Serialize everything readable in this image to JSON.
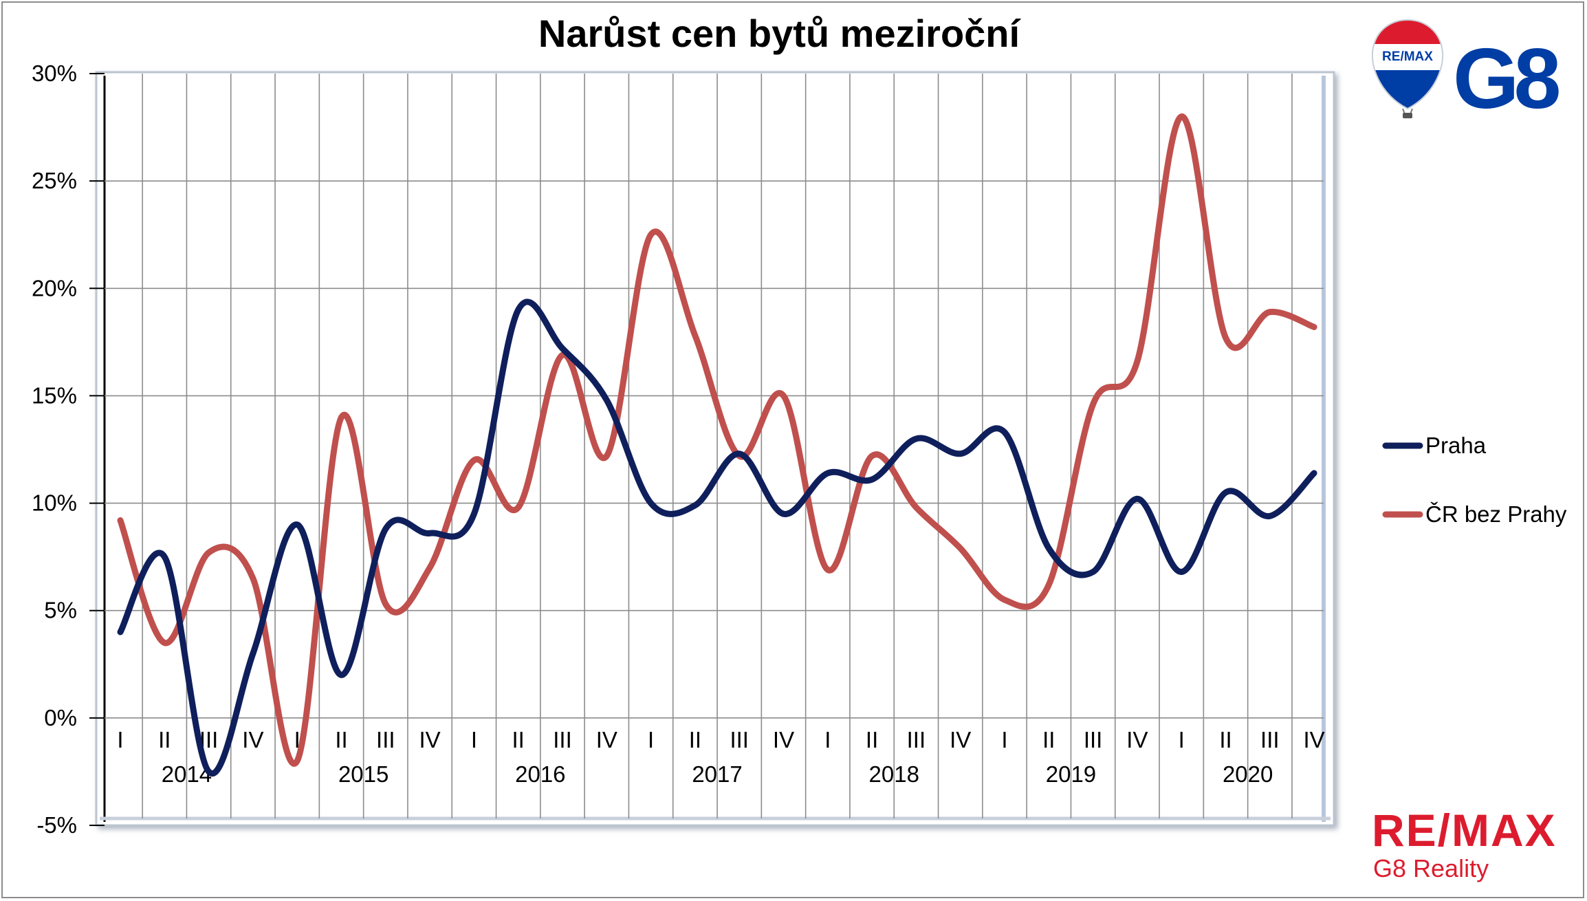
{
  "chart_data": {
    "type": "line",
    "title": "Narůst cen bytů meziroční",
    "xlabel": "",
    "ylabel": "",
    "ylim": [
      -5,
      30
    ],
    "y_ticks": [
      "30%",
      "25%",
      "20%",
      "15%",
      "10%",
      "5%",
      "0%",
      "-5%"
    ],
    "y_tick_values": [
      30,
      25,
      20,
      15,
      10,
      5,
      0,
      -5
    ],
    "quarter_labels": [
      "I",
      "II",
      "III",
      "IV",
      "I",
      "II",
      "III",
      "IV",
      "I",
      "II",
      "III",
      "IV",
      "I",
      "II",
      "III",
      "IV",
      "I",
      "II",
      "III",
      "IV",
      "I",
      "II",
      "III",
      "IV",
      "I",
      "II",
      "III",
      "IV"
    ],
    "years": [
      "2014",
      "2015",
      "2016",
      "2017",
      "2018",
      "2019",
      "2020"
    ],
    "grid": "on",
    "legend_position": "right",
    "series": [
      {
        "name": "Praha",
        "color": "#0f1f5c",
        "values": [
          4.0,
          7.5,
          -2.5,
          3.0,
          9.0,
          2.0,
          8.8,
          8.6,
          9.5,
          19.0,
          17.2,
          14.8,
          10.0,
          9.9,
          12.3,
          9.5,
          11.4,
          11.1,
          13.0,
          12.3,
          13.3,
          7.9,
          6.8,
          10.2,
          6.8,
          10.5,
          9.4,
          11.4
        ]
      },
      {
        "name": "ČR bez Prahy",
        "color": "#c0504d",
        "values": [
          9.2,
          3.5,
          7.7,
          6.5,
          -2.0,
          14.0,
          5.3,
          7.0,
          12.0,
          9.8,
          16.9,
          12.2,
          22.5,
          17.8,
          12.2,
          15.0,
          6.9,
          12.2,
          9.8,
          7.9,
          5.5,
          6.2,
          14.6,
          16.6,
          28.0,
          17.7,
          18.9,
          18.2
        ]
      }
    ]
  },
  "logo_top": {
    "balloon_text": "RE/MAX",
    "mark": "G8",
    "colors": {
      "red": "#dc1c2e",
      "blue": "#003da5"
    }
  },
  "logo_bottom": {
    "wordmark": "RE/MAX",
    "subtitle": "G8 Reality",
    "color": "#dc1c2e"
  }
}
